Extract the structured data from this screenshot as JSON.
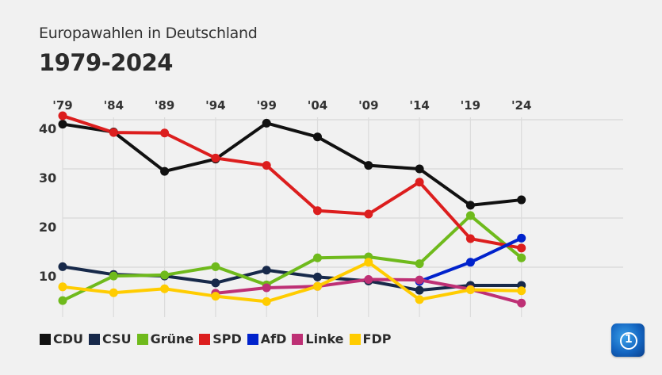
{
  "header": {
    "subtitle": "Europawahlen in Deutschland",
    "title": "1979-2024"
  },
  "logo": {
    "icon": "tagesschau-logo-icon"
  },
  "chart_data": {
    "type": "line",
    "title": "1979-2024",
    "subtitle": "Europawahlen in Deutschland",
    "xlabel": "",
    "ylabel": "",
    "x": [
      "'79",
      "'84",
      "'89",
      "'94",
      "'99",
      "'04",
      "'09",
      "'14",
      "'19",
      "'24"
    ],
    "yticks": [
      10,
      20,
      30,
      40
    ],
    "ylim": [
      0,
      41
    ],
    "grid": true,
    "legend_position": "bottom-left",
    "series": [
      {
        "name": "CDU",
        "color": "#111111",
        "values": [
          39.1,
          37.5,
          29.5,
          32.0,
          39.3,
          36.5,
          30.7,
          30.0,
          22.6,
          23.7
        ]
      },
      {
        "name": "CSU",
        "color": "#17294a",
        "values": [
          10.1,
          8.5,
          8.2,
          6.8,
          9.4,
          8.0,
          7.2,
          5.3,
          6.3,
          6.3
        ]
      },
      {
        "name": "Grüne",
        "color": "#6fba1c",
        "values": [
          3.2,
          8.2,
          8.4,
          10.1,
          6.4,
          11.9,
          12.1,
          10.7,
          20.5,
          11.9
        ]
      },
      {
        "name": "SPD",
        "color": "#dc1e1e",
        "values": [
          40.8,
          37.4,
          37.3,
          32.2,
          30.7,
          21.5,
          20.8,
          27.3,
          15.8,
          13.9
        ]
      },
      {
        "name": "AfD",
        "color": "#0022cc",
        "values": [
          null,
          null,
          null,
          null,
          null,
          null,
          null,
          7.1,
          11.0,
          15.9
        ]
      },
      {
        "name": "Linke",
        "color": "#be3075",
        "values": [
          null,
          null,
          null,
          4.7,
          5.8,
          6.1,
          7.5,
          7.4,
          5.5,
          2.7
        ]
      },
      {
        "name": "FDP",
        "color": "#ffcc00",
        "values": [
          6.0,
          4.8,
          5.6,
          4.1,
          3.0,
          6.1,
          11.0,
          3.4,
          5.4,
          5.2
        ]
      }
    ]
  }
}
